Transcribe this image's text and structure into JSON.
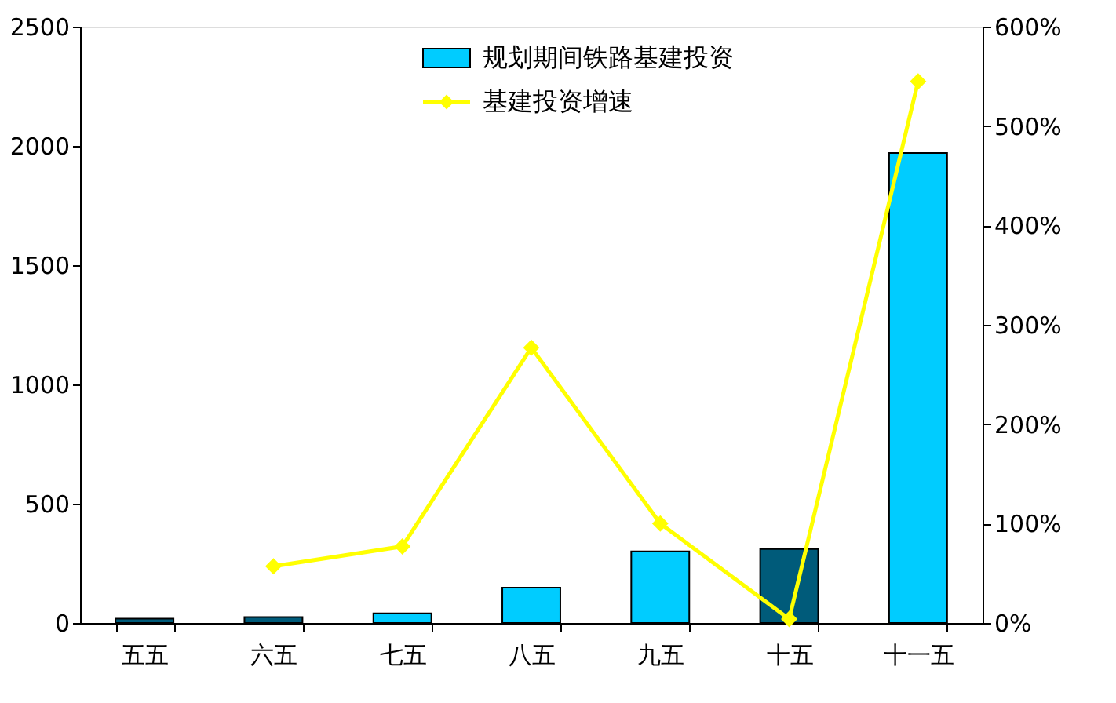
{
  "chart_data": {
    "type": "bar",
    "categories": [
      "五五",
      "六五",
      "七五",
      "八五",
      "九五",
      "十五",
      "十一五"
    ],
    "series": [
      {
        "name": "规划期间铁路基建投资",
        "color": "#00ccff",
        "colors": [
          "#005b7a",
          "#005b7a",
          "#00ccff",
          "#00ccff",
          "#00ccff",
          "#005b7a",
          "#00ccff"
        ],
        "values": [
          18,
          25,
          40,
          148,
          300,
          310,
          1970
        ]
      },
      {
        "name": "基建投资增速",
        "type": "line",
        "axis": "y2",
        "color": "#ffff00",
        "marker": "diamond",
        "values": [
          null,
          57,
          77,
          277,
          100,
          4,
          545
        ]
      }
    ],
    "ylim": [
      0,
      2500
    ],
    "yticks": [
      0,
      500,
      1000,
      1500,
      2000,
      2500
    ],
    "y2lim": [
      0,
      600
    ],
    "y2ticks": [
      {
        "value": 0,
        "label": "0%"
      },
      {
        "value": 100,
        "label": "100%"
      },
      {
        "value": 200,
        "label": "200%"
      },
      {
        "value": 300,
        "label": "300%"
      },
      {
        "value": 400,
        "label": "400%"
      },
      {
        "value": 500,
        "label": "500%"
      },
      {
        "value": 600,
        "label": "600%"
      }
    ],
    "grid": false,
    "legend": "top"
  }
}
